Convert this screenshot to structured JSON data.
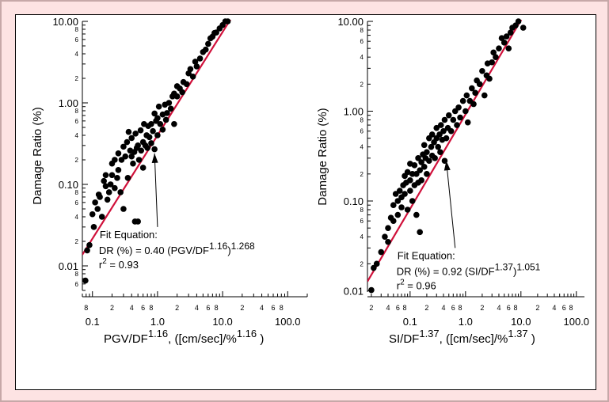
{
  "colors": {
    "background_border": "#fde3e3",
    "fit_line": "#d0103a",
    "points": "#000000"
  },
  "chart_data": [
    {
      "type": "scatter",
      "title": "",
      "xlabel_main": "PGV/DF",
      "xlabel_exp": "1.16",
      "xlabel_tail": ", ([cm/sec]/%",
      "xlabel_unit_exp": "1.16",
      "xlabel_close": " )",
      "ylabel": "Damage Ratio (%)",
      "xscale": "log",
      "yscale": "log",
      "xlim": [
        0.07,
        200
      ],
      "ylim": [
        0.005,
        10
      ],
      "x_major_ticks": [
        {
          "v": 0.1,
          "label": "0.1"
        },
        {
          "v": 1,
          "label": "1.0"
        },
        {
          "v": 10,
          "label": "10.0"
        },
        {
          "v": 100,
          "label": "100.0"
        }
      ],
      "x_minor_labels": [
        {
          "v": 0.08,
          "label": "8"
        },
        {
          "v": 0.2,
          "label": "2"
        },
        {
          "v": 0.4,
          "label": "4"
        },
        {
          "v": 0.6,
          "label": "6"
        },
        {
          "v": 0.8,
          "label": "8"
        },
        {
          "v": 2,
          "label": "2"
        },
        {
          "v": 4,
          "label": "4"
        },
        {
          "v": 6,
          "label": "6"
        },
        {
          "v": 8,
          "label": "8"
        },
        {
          "v": 20,
          "label": "2"
        },
        {
          "v": 40,
          "label": "4"
        },
        {
          "v": 60,
          "label": "6"
        },
        {
          "v": 80,
          "label": "8"
        }
      ],
      "y_major_ticks": [
        {
          "v": 0.01,
          "label": "0.01"
        },
        {
          "v": 0.1,
          "label": "0.10"
        },
        {
          "v": 1,
          "label": "1.00"
        },
        {
          "v": 10,
          "label": "10.00"
        }
      ],
      "y_minor_labels": [
        {
          "v": 0.006,
          "label": "6"
        },
        {
          "v": 0.008,
          "label": "8"
        },
        {
          "v": 0.02,
          "label": "2"
        },
        {
          "v": 0.04,
          "label": "4"
        },
        {
          "v": 0.06,
          "label": "6"
        },
        {
          "v": 0.08,
          "label": "8"
        },
        {
          "v": 0.2,
          "label": "2"
        },
        {
          "v": 0.4,
          "label": "4"
        },
        {
          "v": 0.6,
          "label": "6"
        },
        {
          "v": 0.8,
          "label": "8"
        },
        {
          "v": 2,
          "label": "2"
        },
        {
          "v": 4,
          "label": "4"
        },
        {
          "v": 6,
          "label": "6"
        },
        {
          "v": 8,
          "label": "8"
        }
      ],
      "fit": {
        "coef": 0.4,
        "power": 1.268,
        "x_range": [
          0.07,
          14
        ]
      },
      "annotation": {
        "line1": "Fit  Equation:",
        "line2_pre": "DR (%) = 0.40 (PGV/DF",
        "line2_exp": "1.16",
        "line2_post": ")",
        "line2_exp2": "1.268",
        "line3_pre": "r",
        "line3_exp": "2",
        "line3_post": " = 0.93",
        "arrow_from": [
          1.0,
          0.03
        ],
        "arrow_to": [
          0.9,
          0.24
        ]
      },
      "points": [
        [
          0.078,
          0.0066
        ],
        [
          0.083,
          0.0155
        ],
        [
          0.09,
          0.018
        ],
        [
          0.1,
          0.043
        ],
        [
          0.105,
          0.03
        ],
        [
          0.11,
          0.06
        ],
        [
          0.12,
          0.05
        ],
        [
          0.125,
          0.075
        ],
        [
          0.13,
          0.07
        ],
        [
          0.14,
          0.04
        ],
        [
          0.15,
          0.11
        ],
        [
          0.16,
          0.095
        ],
        [
          0.16,
          0.13
        ],
        [
          0.17,
          0.065
        ],
        [
          0.18,
          0.08
        ],
        [
          0.19,
          0.1
        ],
        [
          0.2,
          0.13
        ],
        [
          0.2,
          0.18
        ],
        [
          0.22,
          0.2
        ],
        [
          0.22,
          0.09
        ],
        [
          0.24,
          0.12
        ],
        [
          0.25,
          0.15
        ],
        [
          0.25,
          0.24
        ],
        [
          0.27,
          0.08
        ],
        [
          0.28,
          0.2
        ],
        [
          0.3,
          0.29
        ],
        [
          0.3,
          0.05
        ],
        [
          0.32,
          0.22
        ],
        [
          0.34,
          0.33
        ],
        [
          0.35,
          0.12
        ],
        [
          0.36,
          0.44
        ],
        [
          0.38,
          0.26
        ],
        [
          0.4,
          0.22
        ],
        [
          0.4,
          0.37
        ],
        [
          0.42,
          0.18
        ],
        [
          0.44,
          0.25
        ],
        [
          0.45,
          0.035
        ],
        [
          0.46,
          0.42
        ],
        [
          0.48,
          0.28
        ],
        [
          0.5,
          0.035
        ],
        [
          0.5,
          0.3
        ],
        [
          0.52,
          0.2
        ],
        [
          0.55,
          0.46
        ],
        [
          0.56,
          0.26
        ],
        [
          0.6,
          0.33
        ],
        [
          0.6,
          0.16
        ],
        [
          0.62,
          0.55
        ],
        [
          0.65,
          0.3
        ],
        [
          0.68,
          0.4
        ],
        [
          0.7,
          0.28
        ],
        [
          0.72,
          0.52
        ],
        [
          0.75,
          0.38
        ],
        [
          0.8,
          0.55
        ],
        [
          0.8,
          0.32
        ],
        [
          0.85,
          0.45
        ],
        [
          0.9,
          0.74
        ],
        [
          0.9,
          0.27
        ],
        [
          0.95,
          0.6
        ],
        [
          1.0,
          0.65
        ],
        [
          1.0,
          0.4
        ],
        [
          1.05,
          0.9
        ],
        [
          1.1,
          0.55
        ],
        [
          1.2,
          0.72
        ],
        [
          1.2,
          0.47
        ],
        [
          1.3,
          0.95
        ],
        [
          1.35,
          0.62
        ],
        [
          1.4,
          0.75
        ],
        [
          1.5,
          1.0
        ],
        [
          1.6,
          0.85
        ],
        [
          1.7,
          1.2
        ],
        [
          1.8,
          0.55
        ],
        [
          1.8,
          1.3
        ],
        [
          2.0,
          1.2
        ],
        [
          2.0,
          1.6
        ],
        [
          2.2,
          1.5
        ],
        [
          2.4,
          1.35
        ],
        [
          2.5,
          1.8
        ],
        [
          2.8,
          1.7
        ],
        [
          3.0,
          2.3
        ],
        [
          3.2,
          2.6
        ],
        [
          3.5,
          2.1
        ],
        [
          3.8,
          3.2
        ],
        [
          4.0,
          2.8
        ],
        [
          4.5,
          3.5
        ],
        [
          5.0,
          4.2
        ],
        [
          5.5,
          4.5
        ],
        [
          6.0,
          5.3
        ],
        [
          6.5,
          6.2
        ],
        [
          7.0,
          6.5
        ],
        [
          7.5,
          7.2
        ],
        [
          8.0,
          7.3
        ],
        [
          9.0,
          8.2
        ],
        [
          10.0,
          9.0
        ],
        [
          11.0,
          10.0
        ],
        [
          12.0,
          10.0
        ]
      ]
    },
    {
      "type": "scatter",
      "title": "",
      "xlabel_main": "SI/DF",
      "xlabel_exp": "1.37",
      "xlabel_tail": ", ([cm/sec]/%",
      "xlabel_unit_exp": "1.37",
      "xlabel_close": " )",
      "ylabel": "Damage Ratio (%)",
      "xscale": "log",
      "yscale": "log",
      "xlim": [
        0.017,
        140
      ],
      "ylim": [
        0.0097,
        10
      ],
      "x_major_ticks": [
        {
          "v": 0.1,
          "label": "0.1"
        },
        {
          "v": 1,
          "label": "1.0"
        },
        {
          "v": 10,
          "label": "10.0"
        },
        {
          "v": 100,
          "label": "100.0"
        }
      ],
      "x_minor_labels": [
        {
          "v": 0.02,
          "label": "2"
        },
        {
          "v": 0.04,
          "label": "4"
        },
        {
          "v": 0.06,
          "label": "6"
        },
        {
          "v": 0.08,
          "label": "8"
        },
        {
          "v": 0.2,
          "label": "2"
        },
        {
          "v": 0.4,
          "label": "4"
        },
        {
          "v": 0.6,
          "label": "6"
        },
        {
          "v": 0.8,
          "label": "8"
        },
        {
          "v": 2,
          "label": "2"
        },
        {
          "v": 4,
          "label": "4"
        },
        {
          "v": 6,
          "label": "6"
        },
        {
          "v": 8,
          "label": "8"
        },
        {
          "v": 20,
          "label": "2"
        },
        {
          "v": 40,
          "label": "4"
        },
        {
          "v": 60,
          "label": "6"
        },
        {
          "v": 80,
          "label": "8"
        }
      ],
      "y_major_ticks": [
        {
          "v": 0.01,
          "label": "0.01"
        },
        {
          "v": 0.1,
          "label": "0.10"
        },
        {
          "v": 1,
          "label": "1.00"
        },
        {
          "v": 10,
          "label": "10.00"
        }
      ],
      "y_minor_labels": [
        {
          "v": 0.02,
          "label": "2"
        },
        {
          "v": 0.04,
          "label": "4"
        },
        {
          "v": 0.06,
          "label": "6"
        },
        {
          "v": 0.08,
          "label": "8"
        },
        {
          "v": 0.2,
          "label": "2"
        },
        {
          "v": 0.4,
          "label": "4"
        },
        {
          "v": 0.6,
          "label": "6"
        },
        {
          "v": 0.8,
          "label": "8"
        },
        {
          "v": 2,
          "label": "2"
        },
        {
          "v": 4,
          "label": "4"
        },
        {
          "v": 6,
          "label": "6"
        },
        {
          "v": 8,
          "label": "8"
        }
      ],
      "fit": {
        "coef": 0.92,
        "power": 1.051,
        "x_range": [
          0.017,
          11
        ]
      },
      "annotation": {
        "line1": "Fit  Equation:",
        "line2_pre": "DR (%) = 0.92 (SI/DF",
        "line2_exp": "1.37",
        "line2_post": ")",
        "line2_exp2": "1.051",
        "line3_pre": "r",
        "line3_exp": "2",
        "line3_post": " = 0.96",
        "arrow_from": [
          0.65,
          0.03
        ],
        "arrow_to": [
          0.45,
          0.28
        ]
      },
      "points": [
        [
          0.02,
          0.0102
        ],
        [
          0.022,
          0.018
        ],
        [
          0.025,
          0.02
        ],
        [
          0.03,
          0.027
        ],
        [
          0.035,
          0.04
        ],
        [
          0.04,
          0.05
        ],
        [
          0.04,
          0.035
        ],
        [
          0.045,
          0.065
        ],
        [
          0.05,
          0.06
        ],
        [
          0.05,
          0.09
        ],
        [
          0.055,
          0.12
        ],
        [
          0.06,
          0.07
        ],
        [
          0.06,
          0.1
        ],
        [
          0.065,
          0.13
        ],
        [
          0.07,
          0.085
        ],
        [
          0.07,
          0.11
        ],
        [
          0.075,
          0.15
        ],
        [
          0.08,
          0.12
        ],
        [
          0.08,
          0.19
        ],
        [
          0.085,
          0.16
        ],
        [
          0.09,
          0.08
        ],
        [
          0.09,
          0.21
        ],
        [
          0.1,
          0.13
        ],
        [
          0.1,
          0.17
        ],
        [
          0.1,
          0.26
        ],
        [
          0.11,
          0.2
        ],
        [
          0.11,
          0.1
        ],
        [
          0.12,
          0.15
        ],
        [
          0.12,
          0.25
        ],
        [
          0.13,
          0.07
        ],
        [
          0.13,
          0.2
        ],
        [
          0.14,
          0.3
        ],
        [
          0.14,
          0.16
        ],
        [
          0.15,
          0.22
        ],
        [
          0.15,
          0.045
        ],
        [
          0.16,
          0.27
        ],
        [
          0.16,
          0.17
        ],
        [
          0.17,
          0.33
        ],
        [
          0.18,
          0.24
        ],
        [
          0.18,
          0.42
        ],
        [
          0.19,
          0.3
        ],
        [
          0.2,
          0.2
        ],
        [
          0.2,
          0.35
        ],
        [
          0.22,
          0.28
        ],
        [
          0.22,
          0.5
        ],
        [
          0.24,
          0.4
        ],
        [
          0.25,
          0.32
        ],
        [
          0.25,
          0.55
        ],
        [
          0.27,
          0.45
        ],
        [
          0.28,
          0.3
        ],
        [
          0.3,
          0.5
        ],
        [
          0.3,
          0.65
        ],
        [
          0.32,
          0.4
        ],
        [
          0.34,
          0.55
        ],
        [
          0.35,
          0.35
        ],
        [
          0.36,
          0.7
        ],
        [
          0.38,
          0.48
        ],
        [
          0.4,
          0.6
        ],
        [
          0.42,
          0.28
        ],
        [
          0.42,
          0.8
        ],
        [
          0.45,
          0.5
        ],
        [
          0.48,
          0.65
        ],
        [
          0.5,
          0.9
        ],
        [
          0.55,
          0.6
        ],
        [
          0.6,
          0.8
        ],
        [
          0.65,
          1.0
        ],
        [
          0.7,
          0.7
        ],
        [
          0.75,
          1.1
        ],
        [
          0.8,
          0.85
        ],
        [
          0.9,
          1.3
        ],
        [
          1.0,
          1.0
        ],
        [
          1.05,
          1.5
        ],
        [
          1.1,
          0.75
        ],
        [
          1.2,
          1.3
        ],
        [
          1.3,
          1.8
        ],
        [
          1.4,
          1.2
        ],
        [
          1.5,
          1.6
        ],
        [
          1.6,
          2.2
        ],
        [
          1.8,
          2.0
        ],
        [
          2.0,
          2.8
        ],
        [
          2.2,
          1.5
        ],
        [
          2.4,
          2.5
        ],
        [
          2.5,
          3.4
        ],
        [
          2.7,
          2.3
        ],
        [
          3.0,
          3.5
        ],
        [
          3.2,
          4.5
        ],
        [
          3.5,
          4.0
        ],
        [
          4.0,
          5.0
        ],
        [
          4.5,
          6.5
        ],
        [
          5.0,
          5.8
        ],
        [
          5.5,
          6.8
        ],
        [
          6.0,
          5.0
        ],
        [
          6.5,
          7.5
        ],
        [
          7.0,
          8.5
        ],
        [
          8.0,
          9.0
        ],
        [
          9.0,
          10.0
        ],
        [
          11.0,
          8.5
        ]
      ]
    }
  ]
}
